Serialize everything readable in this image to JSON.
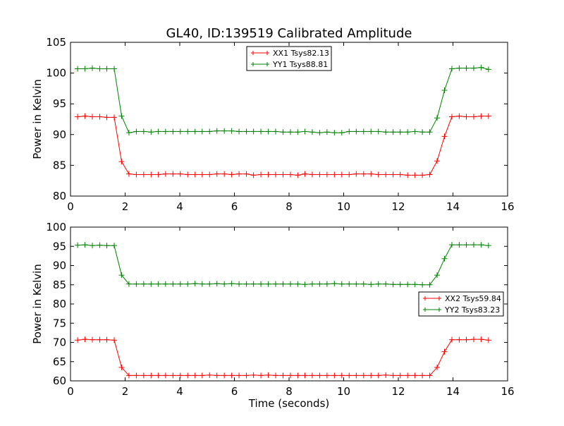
{
  "chart_data": [
    {
      "type": "line",
      "title": "GL40, ID:139519 Calibrated Amplitude",
      "xlabel": "",
      "ylabel": "Power in Kelvin",
      "xlim": [
        0,
        16
      ],
      "ylim": [
        80,
        105
      ],
      "xticks": [
        "0",
        "2",
        "4",
        "6",
        "8",
        "10",
        "12",
        "14",
        "16"
      ],
      "yticks": [
        "80",
        "85",
        "90",
        "95",
        "100",
        "105"
      ],
      "legend_position": "upper-center",
      "x": [
        0.26,
        0.53,
        0.8,
        1.07,
        1.33,
        1.6,
        1.87,
        2.14,
        2.41,
        2.68,
        2.95,
        3.21,
        3.48,
        3.75,
        4.02,
        4.29,
        4.56,
        4.82,
        5.09,
        5.36,
        5.63,
        5.9,
        6.17,
        6.44,
        6.7,
        6.97,
        7.24,
        7.51,
        7.78,
        8.05,
        8.32,
        8.58,
        8.85,
        9.12,
        9.39,
        9.66,
        9.93,
        10.2,
        10.46,
        10.73,
        11.0,
        11.27,
        11.54,
        11.81,
        12.07,
        12.34,
        12.61,
        12.88,
        13.15,
        13.42,
        13.69,
        13.96,
        14.23,
        14.49,
        14.76,
        15.03,
        15.3
      ],
      "series": [
        {
          "name": "XX1 Tsys82.13",
          "color": "#ff0000",
          "values": [
            92.9,
            93.0,
            92.9,
            92.9,
            92.8,
            92.8,
            85.6,
            83.6,
            83.5,
            83.5,
            83.5,
            83.5,
            83.6,
            83.6,
            83.6,
            83.5,
            83.5,
            83.5,
            83.5,
            83.6,
            83.6,
            83.5,
            83.6,
            83.6,
            83.4,
            83.5,
            83.5,
            83.5,
            83.5,
            83.5,
            83.4,
            83.6,
            83.5,
            83.5,
            83.5,
            83.5,
            83.5,
            83.5,
            83.6,
            83.6,
            83.6,
            83.5,
            83.5,
            83.5,
            83.5,
            83.4,
            83.4,
            83.4,
            83.5,
            85.7,
            89.7,
            92.9,
            93.0,
            92.9,
            92.9,
            93.0,
            93.0
          ]
        },
        {
          "name": "YY1 Tsys88.81",
          "color": "#008000",
          "values": [
            100.7,
            100.7,
            100.8,
            100.7,
            100.7,
            100.7,
            93.0,
            90.3,
            90.5,
            90.5,
            90.4,
            90.5,
            90.5,
            90.5,
            90.5,
            90.5,
            90.5,
            90.5,
            90.5,
            90.6,
            90.6,
            90.6,
            90.5,
            90.5,
            90.5,
            90.5,
            90.5,
            90.5,
            90.4,
            90.4,
            90.4,
            90.5,
            90.4,
            90.3,
            90.4,
            90.3,
            90.3,
            90.5,
            90.5,
            90.5,
            90.5,
            90.5,
            90.4,
            90.4,
            90.4,
            90.4,
            90.5,
            90.4,
            90.4,
            92.7,
            97.2,
            100.7,
            100.8,
            100.8,
            100.8,
            100.9,
            100.6
          ]
        }
      ]
    },
    {
      "type": "line",
      "title": "",
      "xlabel": "Time (seconds)",
      "ylabel": "Power in Kelvin",
      "xlim": [
        0,
        16
      ],
      "ylim": [
        60,
        100
      ],
      "xticks": [
        "0",
        "2",
        "4",
        "6",
        "8",
        "10",
        "12",
        "14",
        "16"
      ],
      "yticks": [
        "60",
        "65",
        "70",
        "75",
        "80",
        "85",
        "90",
        "95",
        "100"
      ],
      "legend_position": "center-right",
      "x": [
        0.26,
        0.53,
        0.8,
        1.07,
        1.33,
        1.6,
        1.87,
        2.14,
        2.41,
        2.68,
        2.95,
        3.21,
        3.48,
        3.75,
        4.02,
        4.29,
        4.56,
        4.82,
        5.09,
        5.36,
        5.63,
        5.9,
        6.17,
        6.44,
        6.7,
        6.97,
        7.24,
        7.51,
        7.78,
        8.05,
        8.32,
        8.58,
        8.85,
        9.12,
        9.39,
        9.66,
        9.93,
        10.2,
        10.46,
        10.73,
        11.0,
        11.27,
        11.54,
        11.81,
        12.07,
        12.34,
        12.61,
        12.88,
        13.15,
        13.42,
        13.69,
        13.96,
        14.23,
        14.49,
        14.76,
        15.03,
        15.3
      ],
      "series": [
        {
          "name": "XX2 Tsys59.84",
          "color": "#ff0000",
          "values": [
            70.6,
            70.8,
            70.7,
            70.7,
            70.7,
            70.6,
            63.5,
            61.4,
            61.4,
            61.4,
            61.4,
            61.4,
            61.4,
            61.4,
            61.4,
            61.4,
            61.4,
            61.4,
            61.5,
            61.4,
            61.4,
            61.4,
            61.4,
            61.4,
            61.5,
            61.4,
            61.5,
            61.4,
            61.4,
            61.4,
            61.4,
            61.4,
            61.4,
            61.4,
            61.4,
            61.4,
            61.4,
            61.4,
            61.4,
            61.4,
            61.4,
            61.4,
            61.5,
            61.4,
            61.4,
            61.4,
            61.4,
            61.4,
            61.4,
            63.5,
            67.6,
            70.7,
            70.7,
            70.7,
            70.8,
            70.8,
            70.6
          ]
        },
        {
          "name": "YY2 Tsys83.23",
          "color": "#008000",
          "values": [
            95.3,
            95.4,
            95.2,
            95.3,
            95.2,
            95.2,
            87.5,
            85.2,
            85.2,
            85.2,
            85.2,
            85.2,
            85.2,
            85.2,
            85.2,
            85.2,
            85.3,
            85.2,
            85.2,
            85.3,
            85.2,
            85.3,
            85.2,
            85.2,
            85.2,
            85.2,
            85.2,
            85.2,
            85.2,
            85.2,
            85.2,
            85.1,
            85.2,
            85.2,
            85.2,
            85.3,
            85.2,
            85.2,
            85.2,
            85.2,
            85.1,
            85.2,
            85.2,
            85.1,
            85.1,
            85.1,
            85.1,
            85.0,
            85.0,
            87.5,
            91.8,
            95.4,
            95.4,
            95.4,
            95.4,
            95.4,
            95.2
          ]
        }
      ]
    }
  ]
}
